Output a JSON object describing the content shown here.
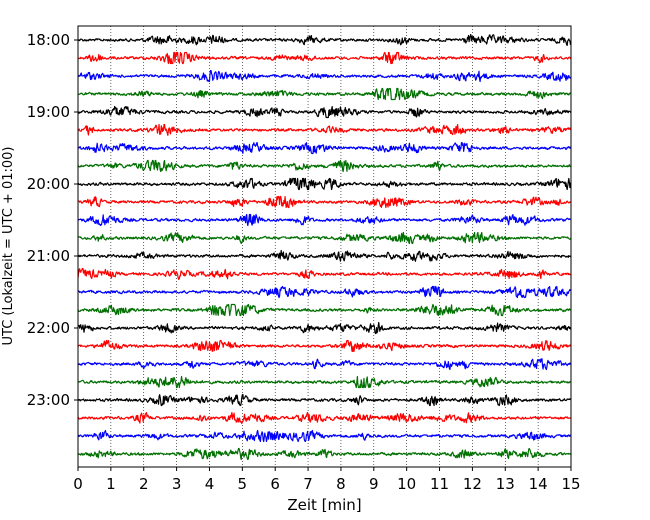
{
  "chart_data": {
    "type": "line",
    "title": "",
    "xlabel": "Zeit  [min]",
    "ylabel": "UTC (Lokalzeit = UTC + 01:00)",
    "xlim": [
      0,
      15
    ],
    "x_ticks": [
      "0",
      "1",
      "2",
      "3",
      "4",
      "5",
      "6",
      "7",
      "8",
      "9",
      "10",
      "11",
      "12",
      "13",
      "14",
      "15"
    ],
    "y_ticks": [
      "18:00",
      "19:00",
      "20:00",
      "21:00",
      "22:00",
      "23:00"
    ],
    "grid": "vertical dotted lines at each minute",
    "trace_interval_minutes": 15,
    "start_time": "18:00",
    "end_time": "23:45",
    "series_colors": [
      "#000000",
      "#ff0000",
      "#0000ff",
      "#007000"
    ],
    "series": [
      {
        "start": "18:00",
        "color": "#000000"
      },
      {
        "start": "18:15",
        "color": "#ff0000"
      },
      {
        "start": "18:30",
        "color": "#0000ff"
      },
      {
        "start": "18:45",
        "color": "#007000"
      },
      {
        "start": "19:00",
        "color": "#000000"
      },
      {
        "start": "19:15",
        "color": "#ff0000"
      },
      {
        "start": "19:30",
        "color": "#0000ff"
      },
      {
        "start": "19:45",
        "color": "#007000"
      },
      {
        "start": "20:00",
        "color": "#000000"
      },
      {
        "start": "20:15",
        "color": "#ff0000"
      },
      {
        "start": "20:30",
        "color": "#0000ff"
      },
      {
        "start": "20:45",
        "color": "#007000"
      },
      {
        "start": "21:00",
        "color": "#000000"
      },
      {
        "start": "21:15",
        "color": "#ff0000"
      },
      {
        "start": "21:30",
        "color": "#0000ff"
      },
      {
        "start": "21:45",
        "color": "#007000"
      },
      {
        "start": "22:00",
        "color": "#000000"
      },
      {
        "start": "22:15",
        "color": "#ff0000"
      },
      {
        "start": "22:30",
        "color": "#0000ff"
      },
      {
        "start": "22:45",
        "color": "#007000"
      },
      {
        "start": "23:00",
        "color": "#000000"
      },
      {
        "start": "23:15",
        "color": "#ff0000"
      },
      {
        "start": "23:30",
        "color": "#0000ff"
      },
      {
        "start": "23:45",
        "color": "#007000"
      }
    ]
  }
}
